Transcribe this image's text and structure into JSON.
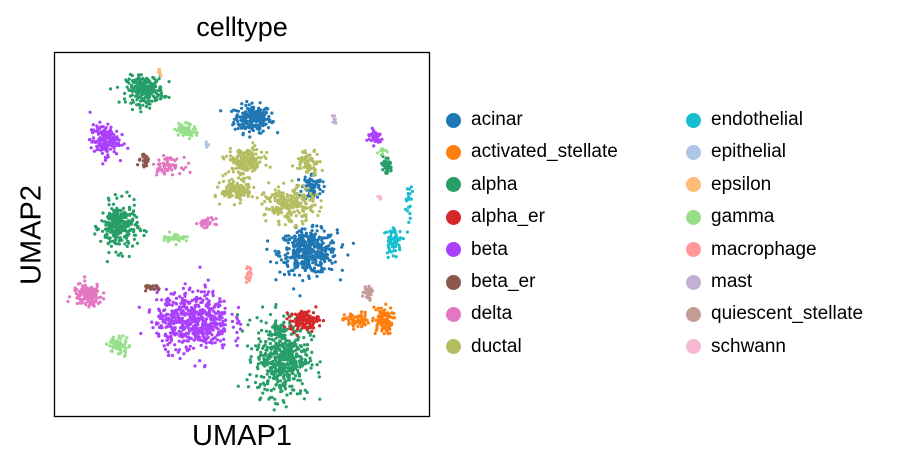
{
  "chart_data": {
    "type": "scatter",
    "title": "celltype",
    "xlabel": "UMAP1",
    "ylabel": "UMAP2",
    "xlim": [
      0,
      10
    ],
    "ylim": [
      0,
      10
    ],
    "grid": false,
    "ticks": false,
    "legend_placement": "right, two columns",
    "series": [
      {
        "name": "acinar",
        "color": "#1f77b4",
        "clusters": [
          {
            "center": [
              5.3,
              8.2
            ],
            "spread": [
              0.45,
              0.35
            ],
            "n": 220
          },
          {
            "center": [
              6.8,
              4.5
            ],
            "spread": [
              0.7,
              0.55
            ],
            "n": 420
          },
          {
            "center": [
              6.9,
              6.3
            ],
            "spread": [
              0.25,
              0.35
            ],
            "n": 80
          }
        ]
      },
      {
        "name": "activated_stellate",
        "color": "#ff7f0e",
        "clusters": [
          {
            "center": [
              8.8,
              2.6
            ],
            "spread": [
              0.25,
              0.35
            ],
            "n": 90
          },
          {
            "center": [
              8.1,
              2.6
            ],
            "spread": [
              0.3,
              0.2
            ],
            "n": 60
          }
        ]
      },
      {
        "name": "alpha",
        "color": "#279e68",
        "clusters": [
          {
            "center": [
              2.4,
              9.0
            ],
            "spread": [
              0.45,
              0.35
            ],
            "n": 240
          },
          {
            "center": [
              1.7,
              5.2
            ],
            "spread": [
              0.45,
              0.6
            ],
            "n": 260
          },
          {
            "center": [
              6.1,
              1.6
            ],
            "spread": [
              0.65,
              1.0
            ],
            "n": 520
          },
          {
            "center": [
              8.9,
              6.9
            ],
            "spread": [
              0.15,
              0.25
            ],
            "n": 40
          }
        ]
      },
      {
        "name": "alpha_er",
        "color": "#d62728",
        "clusters": [
          {
            "center": [
              6.7,
              2.6
            ],
            "spread": [
              0.35,
              0.25
            ],
            "n": 120
          }
        ]
      },
      {
        "name": "beta",
        "color": "#aa40fc",
        "clusters": [
          {
            "center": [
              1.3,
              7.6
            ],
            "spread": [
              0.35,
              0.4
            ],
            "n": 160
          },
          {
            "center": [
              8.6,
              7.7
            ],
            "spread": [
              0.2,
              0.2
            ],
            "n": 40
          },
          {
            "center": [
              3.7,
              2.6
            ],
            "spread": [
              0.9,
              0.75
            ],
            "n": 560
          }
        ]
      },
      {
        "name": "beta_er",
        "color": "#8c564b",
        "clusters": [
          {
            "center": [
              2.4,
              7.0
            ],
            "spread": [
              0.18,
              0.15
            ],
            "n": 25
          },
          {
            "center": [
              2.6,
              3.5
            ],
            "spread": [
              0.2,
              0.08
            ],
            "n": 20
          }
        ]
      },
      {
        "name": "delta",
        "color": "#e377c2",
        "clusters": [
          {
            "center": [
              0.85,
              3.3
            ],
            "spread": [
              0.35,
              0.28
            ],
            "n": 150
          },
          {
            "center": [
              3.0,
              6.9
            ],
            "spread": [
              0.35,
              0.2
            ],
            "n": 60
          },
          {
            "center": [
              4.1,
              5.3
            ],
            "spread": [
              0.2,
              0.12
            ],
            "n": 25
          }
        ]
      },
      {
        "name": "ductal",
        "color": "#b5bd61",
        "clusters": [
          {
            "center": [
              5.1,
              7.0
            ],
            "spread": [
              0.45,
              0.35
            ],
            "n": 180
          },
          {
            "center": [
              4.9,
              6.2
            ],
            "spread": [
              0.4,
              0.25
            ],
            "n": 130
          },
          {
            "center": [
              6.3,
              5.8
            ],
            "spread": [
              0.6,
              0.45
            ],
            "n": 220
          },
          {
            "center": [
              6.8,
              7.0
            ],
            "spread": [
              0.3,
              0.3
            ],
            "n": 70
          }
        ]
      },
      {
        "name": "endothelial",
        "color": "#17becf",
        "clusters": [
          {
            "center": [
              9.1,
              4.8
            ],
            "spread": [
              0.2,
              0.35
            ],
            "n": 60
          },
          {
            "center": [
              9.5,
              5.8
            ],
            "spread": [
              0.08,
              0.5
            ],
            "n": 20
          }
        ]
      },
      {
        "name": "epithelial",
        "color": "#aec7e8",
        "clusters": [
          {
            "center": [
              4.1,
              7.5
            ],
            "spread": [
              0.08,
              0.08
            ],
            "n": 6
          }
        ]
      },
      {
        "name": "epsilon",
        "color": "#ffbb78",
        "clusters": [
          {
            "center": [
              2.8,
              9.5
            ],
            "spread": [
              0.08,
              0.08
            ],
            "n": 6
          }
        ]
      },
      {
        "name": "gamma",
        "color": "#98df8a",
        "clusters": [
          {
            "center": [
              3.5,
              7.9
            ],
            "spread": [
              0.25,
              0.18
            ],
            "n": 60
          },
          {
            "center": [
              3.2,
              4.9
            ],
            "spread": [
              0.3,
              0.12
            ],
            "n": 40
          },
          {
            "center": [
              1.7,
              1.9
            ],
            "spread": [
              0.25,
              0.25
            ],
            "n": 60
          },
          {
            "center": [
              8.8,
              7.3
            ],
            "spread": [
              0.1,
              0.1
            ],
            "n": 10
          }
        ]
      },
      {
        "name": "macrophage",
        "color": "#ff9896",
        "clusters": [
          {
            "center": [
              5.2,
              3.9
            ],
            "spread": [
              0.1,
              0.25
            ],
            "n": 18
          }
        ]
      },
      {
        "name": "mast",
        "color": "#c5b0d5",
        "clusters": [
          {
            "center": [
              7.5,
              8.2
            ],
            "spread": [
              0.05,
              0.1
            ],
            "n": 8
          }
        ]
      },
      {
        "name": "quiescent_stellate",
        "color": "#c49c94",
        "clusters": [
          {
            "center": [
              8.4,
              3.4
            ],
            "spread": [
              0.12,
              0.2
            ],
            "n": 25
          }
        ]
      },
      {
        "name": "schwann",
        "color": "#f7b6d2",
        "clusters": [
          {
            "center": [
              8.7,
              6.0
            ],
            "spread": [
              0.05,
              0.08
            ],
            "n": 5
          }
        ]
      }
    ]
  }
}
